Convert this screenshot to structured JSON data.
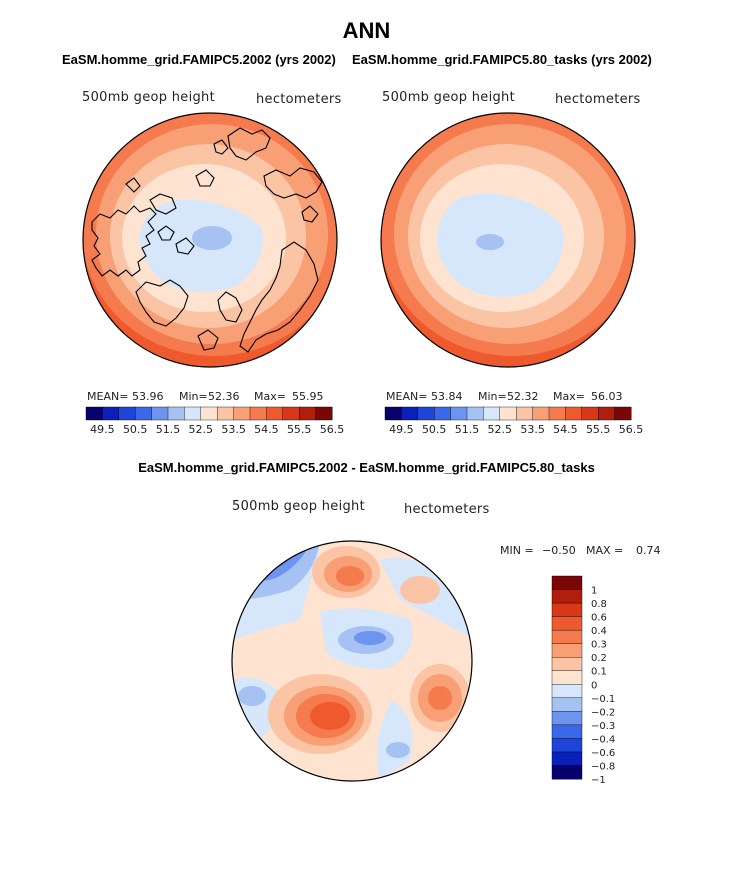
{
  "title": "ANN",
  "colors": {
    "blue_scale": [
      "#08006d",
      "#0a20b8",
      "#1d45d8",
      "#3a68e8",
      "#6d94ee",
      "#a6c2f3",
      "#d6e6fb"
    ],
    "red_scale": [
      "#fde3d0",
      "#fbc4a4",
      "#f99f75",
      "#f57a4d",
      "#ee5a2e",
      "#d83818",
      "#b01e0c",
      "#7a0606"
    ],
    "coast": "#000000"
  },
  "chart_data": [
    {
      "type": "heatmap",
      "panel": "top-left",
      "title": "EaSM.homme_grid.FAMIPC5.2002 (yrs 2002)",
      "field_label": "500mb geop height",
      "units_label": "hectometers",
      "mean_label": "MEAN=",
      "mean": "53.96",
      "min_label": "Min=",
      "min": "52.36",
      "max_label": "Max=",
      "max": "55.95",
      "colorbar_ticks": [
        "49.5",
        "50.5",
        "51.5",
        "52.5",
        "53.5",
        "54.5",
        "55.5",
        "56.5"
      ]
    },
    {
      "type": "heatmap",
      "panel": "top-right",
      "title": "EaSM.homme_grid.FAMIPC5.80_tasks (yrs 2002)",
      "field_label": "500mb geop height",
      "units_label": "hectometers",
      "mean_label": "MEAN=",
      "mean": "53.84",
      "min_label": "Min=",
      "min": "52.32",
      "max_label": "Max=",
      "max": "56.03",
      "colorbar_ticks": [
        "49.5",
        "50.5",
        "51.5",
        "52.5",
        "53.5",
        "54.5",
        "55.5",
        "56.5"
      ]
    },
    {
      "type": "heatmap",
      "panel": "bottom-difference",
      "title": "EaSM.homme_grid.FAMIPC5.2002 - EaSM.homme_grid.FAMIPC5.80_tasks",
      "field_label": "500mb geop height",
      "units_label": "hectometers",
      "min_label": "MIN =",
      "min": "−0.50",
      "max_label": "MAX =",
      "max": "0.74",
      "colorbar_levels": [
        "1",
        "0.8",
        "0.6",
        "0.4",
        "0.3",
        "0.2",
        "0.1",
        "0",
        "−0.1",
        "−0.2",
        "−0.3",
        "−0.4",
        "−0.6",
        "−0.8",
        "−1"
      ]
    }
  ]
}
